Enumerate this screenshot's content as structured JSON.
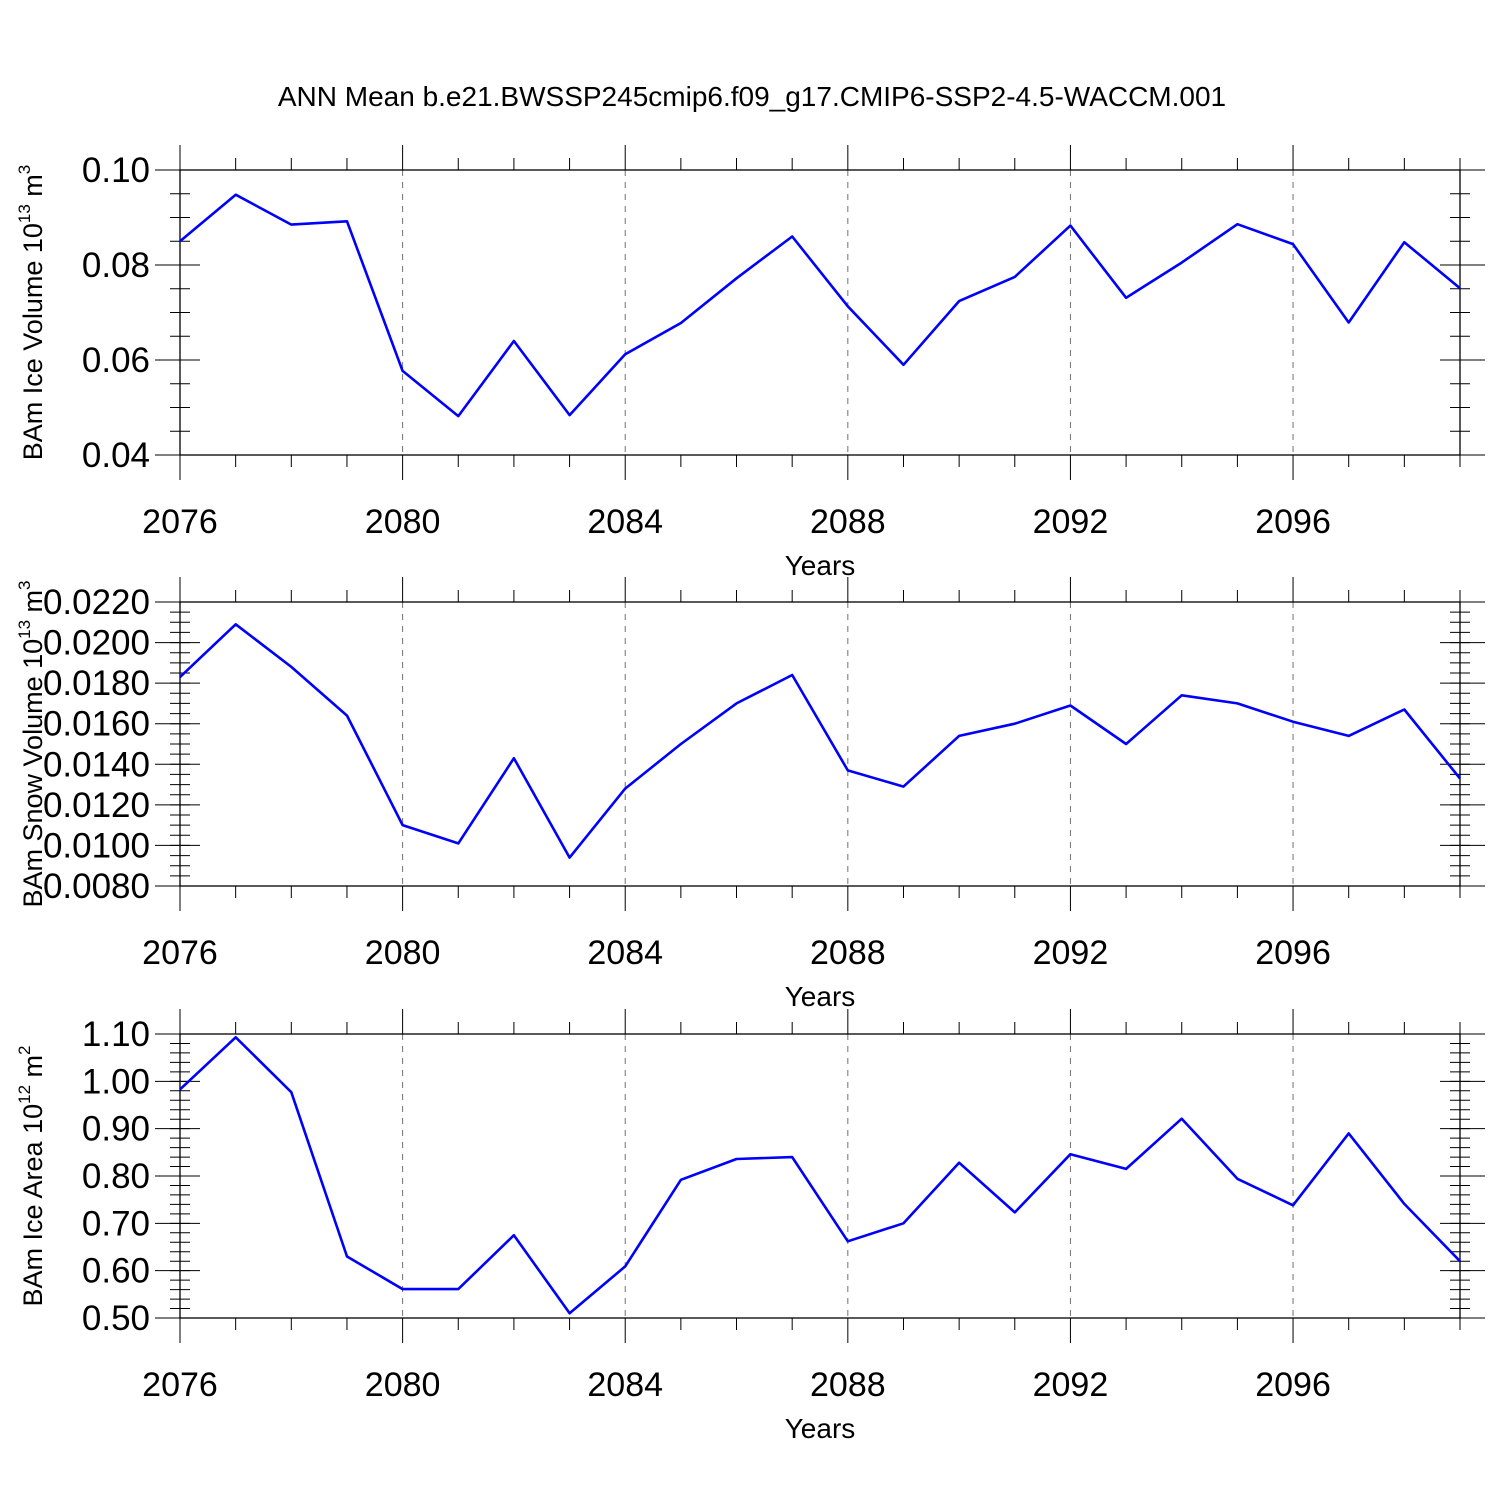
{
  "title": "ANN Mean b.e21.BWSSP245cmip6.f09_g17.CMIP6-SSP2-4.5-WACCM.001",
  "chart_data": [
    {
      "type": "line",
      "ylabel": {
        "main": "BAm Ice Volume 10",
        "exp": "13",
        "unit": " m",
        "unitexp": "3"
      },
      "xlabel": "Years",
      "xlim": [
        2076,
        2099
      ],
      "xticks": [
        2076,
        2080,
        2084,
        2088,
        2092,
        2096
      ],
      "xgrid": [
        2080,
        2084,
        2088,
        2092,
        2096
      ],
      "ylim": [
        0.04,
        0.1
      ],
      "yticks": [
        0.04,
        0.06,
        0.08,
        0.1
      ],
      "ytick_labels": [
        "0.04",
        "0.06",
        "0.08",
        "0.10"
      ],
      "yminor": 0.005,
      "series": [
        {
          "name": "BAm Ice Volume",
          "color": "#0000ff",
          "x": [
            2076,
            2077,
            2078,
            2079,
            2080,
            2081,
            2082,
            2083,
            2084,
            2085,
            2086,
            2087,
            2088,
            2089,
            2090,
            2091,
            2092,
            2093,
            2094,
            2095,
            2096,
            2097,
            2098,
            2099
          ],
          "values": [
            0.085,
            0.0948,
            0.0885,
            0.0892,
            0.0577,
            0.0482,
            0.064,
            0.0484,
            0.0612,
            0.0678,
            0.0772,
            0.086,
            0.0713,
            0.059,
            0.0724,
            0.0775,
            0.0883,
            0.0731,
            0.0805,
            0.0886,
            0.0844,
            0.0679,
            0.0848,
            0.0751
          ]
        }
      ]
    },
    {
      "type": "line",
      "ylabel": {
        "main": "BAm Snow Volume 10",
        "exp": "13",
        "unit": " m",
        "unitexp": "3"
      },
      "xlabel": "Years",
      "xlim": [
        2076,
        2099
      ],
      "xticks": [
        2076,
        2080,
        2084,
        2088,
        2092,
        2096
      ],
      "xgrid": [
        2080,
        2084,
        2088,
        2092,
        2096
      ],
      "ylim": [
        0.008,
        0.022
      ],
      "yticks": [
        0.008,
        0.01,
        0.012,
        0.014,
        0.016,
        0.018,
        0.02,
        0.022
      ],
      "ytick_labels": [
        "0.0080",
        "0.0100",
        "0.0120",
        "0.0140",
        "0.0160",
        "0.0180",
        "0.0200",
        "0.0220"
      ],
      "yminor": 0.0005,
      "series": [
        {
          "name": "BAm Snow Volume",
          "color": "#0000ff",
          "x": [
            2076,
            2077,
            2078,
            2079,
            2080,
            2081,
            2082,
            2083,
            2084,
            2085,
            2086,
            2087,
            2088,
            2089,
            2090,
            2091,
            2092,
            2093,
            2094,
            2095,
            2096,
            2097,
            2098,
            2099
          ],
          "values": [
            0.0183,
            0.0209,
            0.0188,
            0.0164,
            0.011,
            0.0101,
            0.0143,
            0.0094,
            0.0128,
            0.015,
            0.017,
            0.0184,
            0.0137,
            0.0129,
            0.0154,
            0.016,
            0.0169,
            0.015,
            0.0174,
            0.017,
            0.0161,
            0.0154,
            0.0167,
            0.0133
          ]
        }
      ]
    },
    {
      "type": "line",
      "ylabel": {
        "main": "BAm Ice Area 10",
        "exp": "12",
        "unit": " m",
        "unitexp": "2"
      },
      "xlabel": "Years",
      "xlim": [
        2076,
        2099
      ],
      "xticks": [
        2076,
        2080,
        2084,
        2088,
        2092,
        2096
      ],
      "xgrid": [
        2080,
        2084,
        2088,
        2092,
        2096
      ],
      "ylim": [
        0.5,
        1.1
      ],
      "yticks": [
        0.5,
        0.6,
        0.7,
        0.8,
        0.9,
        1.0,
        1.1
      ],
      "ytick_labels": [
        "0.50",
        "0.60",
        "0.70",
        "0.80",
        "0.90",
        "1.00",
        "1.10"
      ],
      "yminor": 0.02,
      "series": [
        {
          "name": "BAm Ice Area",
          "color": "#0000ff",
          "x": [
            2076,
            2077,
            2078,
            2079,
            2080,
            2081,
            2082,
            2083,
            2084,
            2085,
            2086,
            2087,
            2088,
            2089,
            2090,
            2091,
            2092,
            2093,
            2094,
            2095,
            2096,
            2097,
            2098,
            2099
          ],
          "values": [
            0.983,
            1.093,
            0.977,
            0.63,
            0.561,
            0.561,
            0.675,
            0.51,
            0.609,
            0.792,
            0.836,
            0.84,
            0.662,
            0.7,
            0.828,
            0.723,
            0.846,
            0.815,
            0.921,
            0.794,
            0.738,
            0.89,
            0.741,
            0.62
          ]
        }
      ]
    }
  ]
}
